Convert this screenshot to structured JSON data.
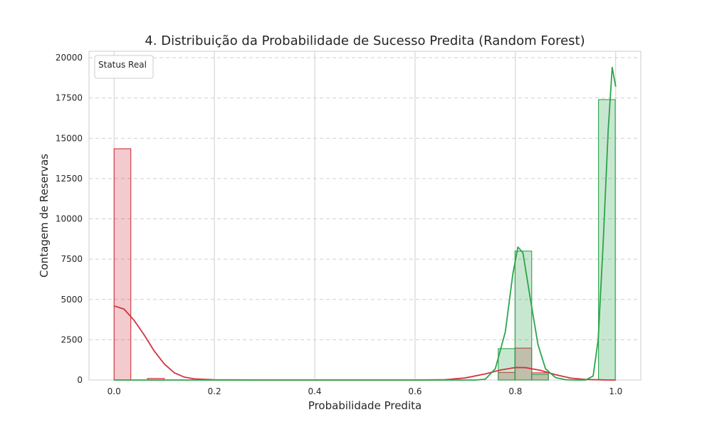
{
  "chart_data": {
    "type": "histogram",
    "title": "4. Distribuição da Probabilidade de Sucesso Predita (Random Forest)",
    "xlabel": "Probabilidade Predita",
    "ylabel": "Contagem de Reservas",
    "xlim": [
      -0.05,
      1.05
    ],
    "ylim": [
      0,
      20400
    ],
    "x_ticks": [
      0.0,
      0.2,
      0.4,
      0.6,
      0.8,
      1.0
    ],
    "x_tick_labels": [
      "0.0",
      "0.2",
      "0.4",
      "0.6",
      "0.8",
      "1.0"
    ],
    "y_ticks": [
      0,
      2500,
      5000,
      7500,
      10000,
      12500,
      15000,
      17500,
      20000
    ],
    "y_tick_labels": [
      "0",
      "2500",
      "5000",
      "7500",
      "10000",
      "12500",
      "15000",
      "17500",
      "20000"
    ],
    "grid": true,
    "legend": {
      "title": "Status Real",
      "placement": "top-left"
    },
    "bins": {
      "start": 0.0,
      "width": 0.0333,
      "count": 30
    },
    "series": [
      {
        "color": "#d1343f",
        "counts": [
          14350,
          0,
          100,
          0,
          0,
          0,
          0,
          0,
          0,
          0,
          0,
          0,
          0,
          0,
          0,
          0,
          0,
          0,
          0,
          0,
          0,
          0,
          0,
          470,
          1980,
          450,
          0,
          0,
          0,
          0
        ],
        "kde": [
          [
            0.0,
            4600
          ],
          [
            0.02,
            4400
          ],
          [
            0.04,
            3700
          ],
          [
            0.06,
            2800
          ],
          [
            0.08,
            1800
          ],
          [
            0.1,
            1000
          ],
          [
            0.12,
            450
          ],
          [
            0.14,
            180
          ],
          [
            0.16,
            70
          ],
          [
            0.2,
            15
          ],
          [
            0.3,
            0
          ],
          [
            0.6,
            0
          ],
          [
            0.66,
            20
          ],
          [
            0.7,
            130
          ],
          [
            0.74,
            380
          ],
          [
            0.77,
            620
          ],
          [
            0.8,
            780
          ],
          [
            0.82,
            770
          ],
          [
            0.85,
            600
          ],
          [
            0.88,
            330
          ],
          [
            0.91,
            120
          ],
          [
            0.94,
            35
          ],
          [
            0.98,
            5
          ],
          [
            1.0,
            0
          ]
        ]
      },
      {
        "color": "#2ca44a",
        "counts": [
          0,
          0,
          0,
          0,
          0,
          0,
          0,
          0,
          0,
          0,
          0,
          0,
          0,
          0,
          0,
          0,
          0,
          0,
          0,
          0,
          0,
          0,
          0,
          1950,
          8000,
          350,
          0,
          0,
          0,
          17400
        ],
        "kde": [
          [
            0.0,
            0
          ],
          [
            0.72,
            0
          ],
          [
            0.74,
            50
          ],
          [
            0.76,
            700
          ],
          [
            0.78,
            3000
          ],
          [
            0.795,
            6600
          ],
          [
            0.805,
            8250
          ],
          [
            0.815,
            7900
          ],
          [
            0.83,
            5000
          ],
          [
            0.845,
            2200
          ],
          [
            0.86,
            700
          ],
          [
            0.88,
            150
          ],
          [
            0.9,
            20
          ],
          [
            0.92,
            0
          ],
          [
            0.94,
            0
          ],
          [
            0.955,
            250
          ],
          [
            0.965,
            2500
          ],
          [
            0.975,
            8500
          ],
          [
            0.985,
            15500
          ],
          [
            0.993,
            19400
          ],
          [
            1.0,
            18200
          ]
        ]
      }
    ]
  }
}
